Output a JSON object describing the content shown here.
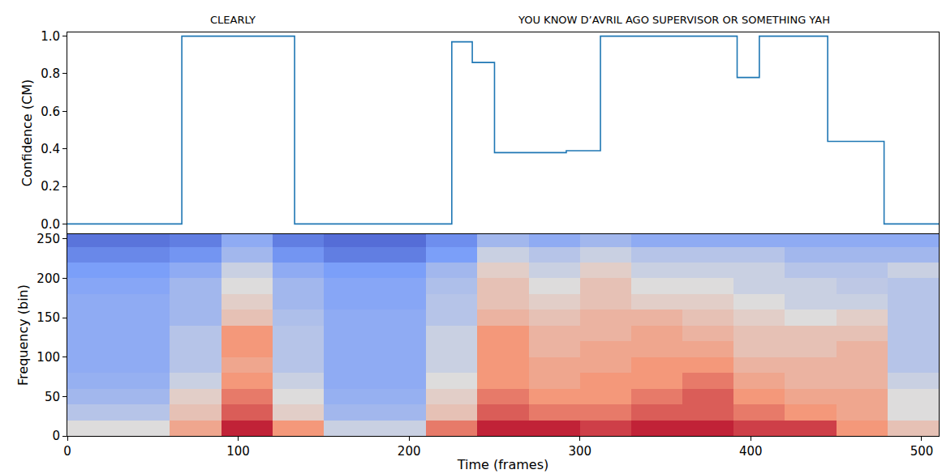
{
  "chart_data": [
    {
      "type": "line",
      "ylabel": "Confidence (CM)",
      "x": [
        0,
        67,
        133,
        225,
        237,
        250,
        292,
        312,
        392,
        405,
        445,
        478,
        510
      ],
      "values": [
        0,
        1.0,
        0,
        0.97,
        0.86,
        0.38,
        0.39,
        1.0,
        0.78,
        1.0,
        0.44,
        0,
        0
      ],
      "color": "#1f77b4",
      "line_style": "steps",
      "xlim": [
        0,
        510
      ],
      "xticks": [
        0,
        100,
        200,
        300,
        400,
        500
      ],
      "ylim": [
        -0.05,
        1.02
      ],
      "yticks": [
        {
          "value": 0,
          "label": "0.0"
        },
        {
          "value": 0.2,
          "label": "0.2"
        },
        {
          "value": 0.4,
          "label": "0.4"
        },
        {
          "value": 0.6,
          "label": "0.6"
        },
        {
          "value": 0.8,
          "label": "0.8"
        },
        {
          "value": 1.0,
          "label": "1.0"
        }
      ],
      "tick_labels": "y",
      "annotations": [
        {
          "text": "CLEARLY",
          "x": 97
        },
        {
          "text": "YOU KNOW D’AVRIL AGO SUPERVISOR OR SOMETHING YAH",
          "x": 355
        }
      ]
    },
    {
      "type": "heatmap",
      "xlabel": "Time (frames)",
      "ylabel": "Frequency (bin)",
      "x_bins": [
        0,
        30,
        60,
        90,
        120,
        150,
        180,
        210,
        240,
        270,
        300,
        330,
        360,
        390,
        420,
        450,
        480,
        510
      ],
      "y_bins": [
        0,
        20,
        40,
        60,
        80,
        100,
        120,
        140,
        160,
        180,
        200,
        220,
        240,
        256
      ],
      "z": [
        [
          0.5,
          0.5,
          0.7,
          0.95,
          0.75,
          0.45,
          0.45,
          0.8,
          0.95,
          0.95,
          0.9,
          0.95,
          0.95,
          0.9,
          0.9,
          0.75,
          0.6
        ],
        [
          0.4,
          0.4,
          0.6,
          0.85,
          0.55,
          0.35,
          0.35,
          0.6,
          0.85,
          0.8,
          0.8,
          0.85,
          0.85,
          0.8,
          0.75,
          0.7,
          0.5
        ],
        [
          0.35,
          0.35,
          0.55,
          0.8,
          0.5,
          0.32,
          0.32,
          0.55,
          0.8,
          0.75,
          0.75,
          0.8,
          0.85,
          0.75,
          0.7,
          0.7,
          0.5
        ],
        [
          0.32,
          0.32,
          0.45,
          0.75,
          0.45,
          0.3,
          0.3,
          0.5,
          0.75,
          0.7,
          0.75,
          0.75,
          0.8,
          0.7,
          0.65,
          0.65,
          0.45
        ],
        [
          0.3,
          0.3,
          0.4,
          0.7,
          0.4,
          0.3,
          0.3,
          0.45,
          0.75,
          0.7,
          0.7,
          0.75,
          0.75,
          0.65,
          0.65,
          0.65,
          0.4
        ],
        [
          0.3,
          0.3,
          0.4,
          0.75,
          0.4,
          0.3,
          0.3,
          0.45,
          0.75,
          0.65,
          0.7,
          0.7,
          0.7,
          0.6,
          0.6,
          0.65,
          0.4
        ],
        [
          0.3,
          0.3,
          0.4,
          0.75,
          0.4,
          0.3,
          0.3,
          0.45,
          0.75,
          0.65,
          0.65,
          0.7,
          0.65,
          0.6,
          0.6,
          0.6,
          0.4
        ],
        [
          0.3,
          0.3,
          0.35,
          0.6,
          0.38,
          0.3,
          0.3,
          0.4,
          0.65,
          0.6,
          0.65,
          0.65,
          0.6,
          0.55,
          0.5,
          0.55,
          0.4
        ],
        [
          0.3,
          0.3,
          0.35,
          0.55,
          0.35,
          0.28,
          0.28,
          0.4,
          0.6,
          0.55,
          0.6,
          0.55,
          0.55,
          0.5,
          0.45,
          0.45,
          0.4
        ],
        [
          0.28,
          0.28,
          0.35,
          0.5,
          0.35,
          0.28,
          0.28,
          0.38,
          0.6,
          0.5,
          0.6,
          0.5,
          0.5,
          0.45,
          0.45,
          0.42,
          0.4
        ],
        [
          0.25,
          0.25,
          0.3,
          0.45,
          0.3,
          0.25,
          0.25,
          0.35,
          0.55,
          0.45,
          0.55,
          0.45,
          0.45,
          0.45,
          0.4,
          0.4,
          0.45
        ],
        [
          0.18,
          0.18,
          0.22,
          0.35,
          0.22,
          0.15,
          0.15,
          0.25,
          0.45,
          0.4,
          0.45,
          0.4,
          0.4,
          0.4,
          0.35,
          0.35,
          0.35
        ],
        [
          0.12,
          0.12,
          0.15,
          0.3,
          0.15,
          0.1,
          0.1,
          0.2,
          0.35,
          0.3,
          0.35,
          0.3,
          0.3,
          0.3,
          0.3,
          0.3,
          0.3
        ]
      ],
      "zlim": [
        0,
        1
      ],
      "xlim": [
        0,
        510
      ],
      "xticks": [
        0,
        100,
        200,
        300,
        400,
        500
      ],
      "ylim": [
        0,
        256
      ],
      "yticks": [
        0,
        50,
        100,
        150,
        200,
        250
      ]
    }
  ]
}
